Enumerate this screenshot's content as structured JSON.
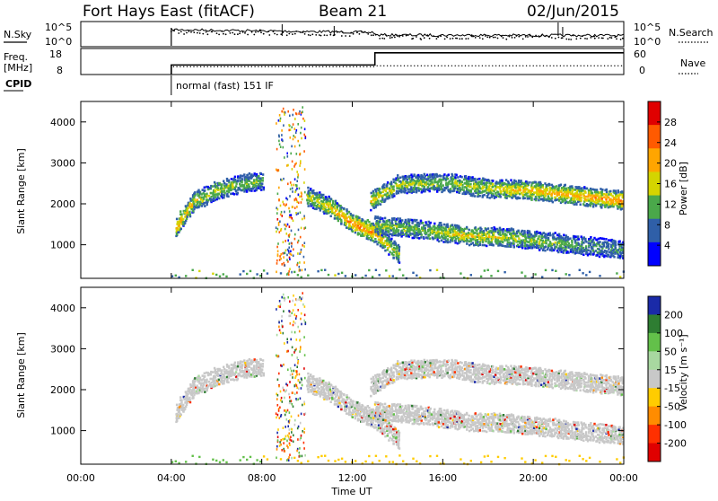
{
  "header": {
    "station": "Fort Hays East (fitACF)",
    "beam": "Beam 21",
    "date": "02/Jun/2015"
  },
  "strip_panels": {
    "nsky_label": "N.Sky",
    "nsearch_label": "N.Search",
    "freq_label_line1": "Freq.",
    "freq_label_line2": "[MHz]",
    "nave_label": "Nave",
    "cpid_label": "CPID",
    "cpid_text": "normal (fast) 151 IF",
    "noise_left_ticks": [
      "10^5",
      "10^0"
    ],
    "noise_right_ticks": [
      "10^5",
      "10^0"
    ],
    "freq_left_ticks": [
      "18",
      "8"
    ],
    "nave_right_ticks": [
      "60",
      "0"
    ]
  },
  "power_panel": {
    "ylabel": "Slant Range [km]",
    "colorbar_label": "Power [dB]",
    "colorbar_ticks": [
      "28",
      "24",
      "20",
      "16",
      "12",
      "8",
      "4"
    ],
    "colorbar_colors": [
      "#e00000",
      "#ff5a00",
      "#ffa500",
      "#d4d400",
      "#4aa84a",
      "#2f5fa8",
      "#0000ff"
    ]
  },
  "velocity_panel": {
    "ylabel": "Slant Range [km]",
    "colorbar_label": "Velocity [m s⁻¹]",
    "colorbar_ticks": [
      "200",
      "100",
      "50",
      "15",
      "-15",
      "-50",
      "-100",
      "-200"
    ],
    "colorbar_colors": [
      "#1a2aa8",
      "#2e7d32",
      "#63c04a",
      "#a8d8a0",
      "#c8c8c8",
      "#ffcc00",
      "#ff8c00",
      "#ff3000",
      "#e00000"
    ]
  },
  "xaxis": {
    "label": "Time UT",
    "ticks": [
      "00:00",
      "04:00",
      "08:00",
      "12:00",
      "16:00",
      "20:00",
      "00:00"
    ]
  },
  "chart_data": {
    "type": "heatmap",
    "title": "Fort Hays East (fitACF)",
    "subtitle": "Beam 21",
    "date": "02/Jun/2015",
    "xlabel": "Time UT",
    "ylabel": "Slant Range [km]",
    "x_range_hours": [
      0,
      24
    ],
    "y_range_km": [
      180,
      4500
    ],
    "y_ticks": [
      1000,
      2000,
      3000,
      4000
    ],
    "data_start_hour": 4.0,
    "cpid": "normal (fast) 151 IF",
    "frequency_MHz": [
      {
        "from": 4.0,
        "to": 13.0,
        "value": 10.5
      },
      {
        "from": 13.0,
        "to": 24.0,
        "value": 17.5
      }
    ],
    "power_scale_dB": [
      0,
      30
    ],
    "velocity_scale_ms": [
      -250,
      250
    ],
    "echo_bands": [
      {
        "name": "upper band",
        "points": [
          [
            4.2,
            1450,
            22
          ],
          [
            5.0,
            2100,
            16
          ],
          [
            6.0,
            2350,
            14
          ],
          [
            7.0,
            2500,
            12
          ],
          [
            8.0,
            2600,
            10
          ]
        ]
      },
      {
        "name": "descending band",
        "points": [
          [
            10.0,
            2200,
            14
          ],
          [
            11.0,
            1950,
            18
          ],
          [
            12.0,
            1550,
            24
          ],
          [
            13.0,
            1300,
            22
          ],
          [
            14.0,
            800,
            14
          ]
        ]
      },
      {
        "name": "lower band",
        "points": [
          [
            13.0,
            1500,
            14
          ],
          [
            15.0,
            1400,
            12
          ],
          [
            17.0,
            1250,
            18
          ],
          [
            19.0,
            1200,
            14
          ],
          [
            24.0,
            900,
            8
          ]
        ]
      },
      {
        "name": "late upper band",
        "points": [
          [
            12.8,
            2100,
            18
          ],
          [
            14.0,
            2500,
            14
          ],
          [
            16.0,
            2550,
            12
          ],
          [
            18.0,
            2400,
            16
          ],
          [
            20.0,
            2350,
            20
          ],
          [
            24.0,
            2100,
            22
          ]
        ]
      }
    ]
  }
}
